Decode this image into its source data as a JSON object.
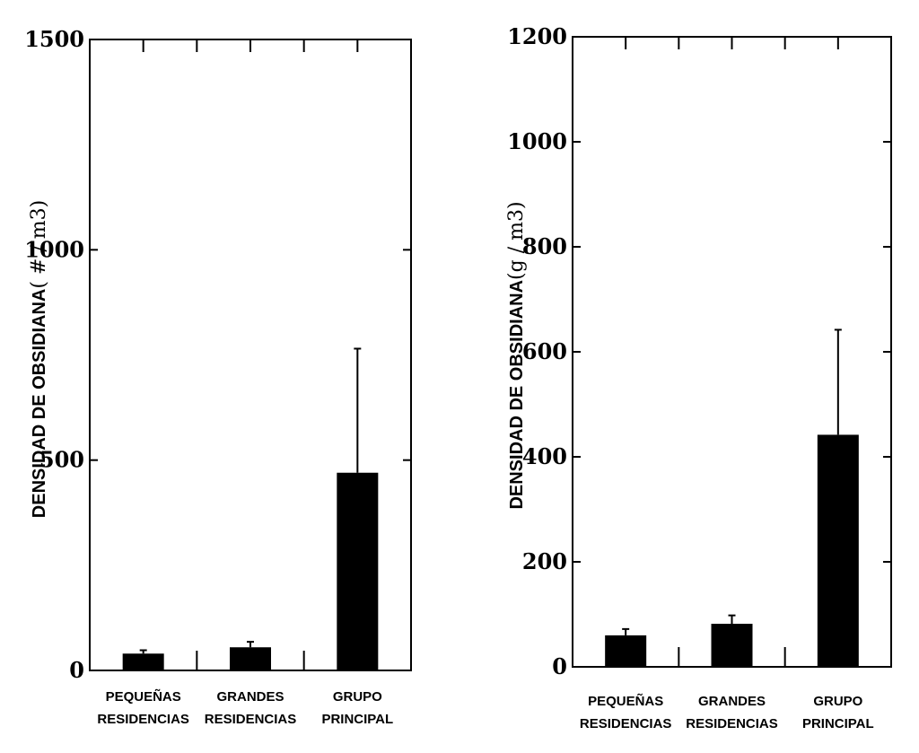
{
  "chart_data": [
    {
      "type": "bar",
      "ylabel": "DENSIDAD DE OBSIDIANA",
      "ylabel_unit": "( # / m3)",
      "categories": [
        [
          "PEQUEÑAS",
          "RESIDENCIAS"
        ],
        [
          "GRANDES",
          "RESIDENCIAS"
        ],
        [
          "GRUPO",
          "PRINCIPAL"
        ]
      ],
      "values": [
        40,
        55,
        470
      ],
      "error_upper": [
        48,
        68,
        765
      ],
      "ylim": [
        0,
        1500
      ],
      "yticks": [
        0,
        500,
        1000,
        1500
      ],
      "ytick_labels": [
        "0",
        "500",
        "1000",
        "1500"
      ],
      "bar_color": "#000000",
      "grid": false
    },
    {
      "type": "bar",
      "ylabel": "DENSIDAD DE OBSIDIANA",
      "ylabel_unit": "(g / m3)",
      "categories": [
        [
          "PEQUEÑAS",
          "RESIDENCIAS"
        ],
        [
          "GRANDES",
          "RESIDENCIAS"
        ],
        [
          "GRUPO",
          "PRINCIPAL"
        ]
      ],
      "values": [
        60,
        82,
        442
      ],
      "error_upper": [
        72,
        98,
        642
      ],
      "ylim": [
        0,
        1200
      ],
      "yticks": [
        0,
        200,
        400,
        600,
        800,
        1000,
        1200
      ],
      "ytick_labels": [
        "0",
        "200",
        "400",
        "600",
        "800",
        "1000",
        "1200"
      ],
      "bar_color": "#000000",
      "grid": false
    }
  ]
}
